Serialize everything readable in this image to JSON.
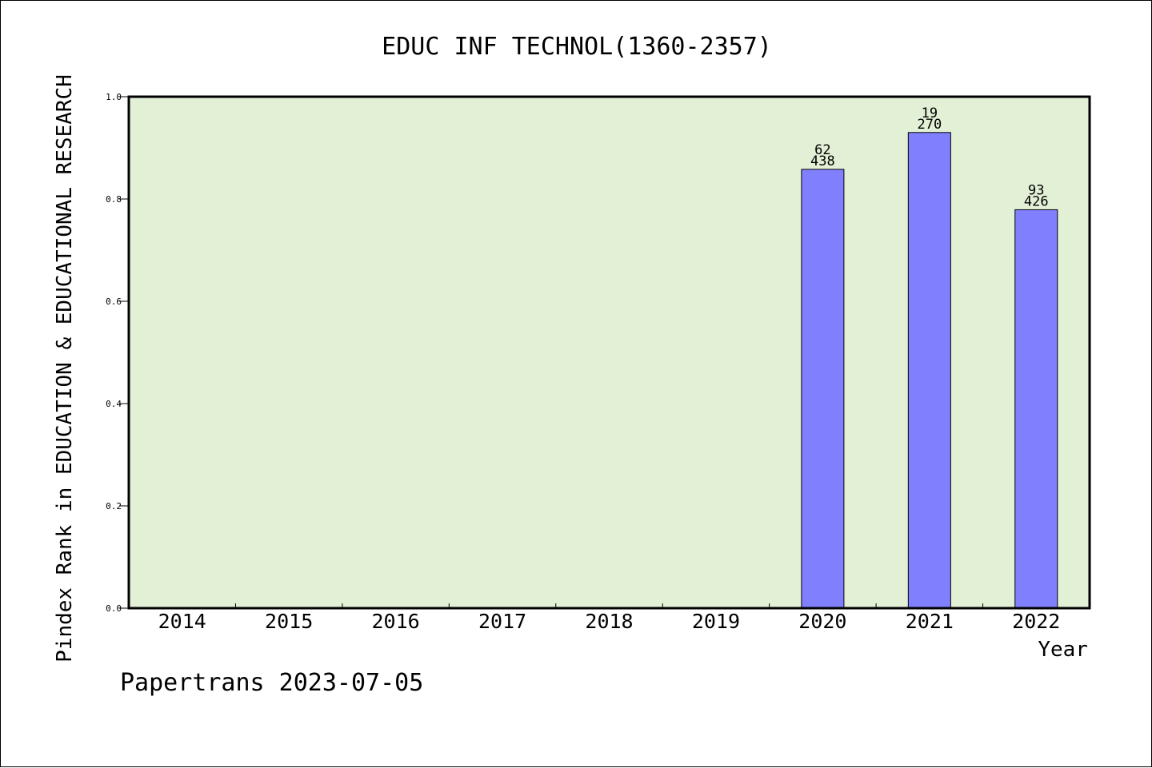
{
  "chart_data": {
    "type": "bar",
    "title": "EDUC INF TECHNOL(1360-2357)",
    "xlabel": "Year",
    "ylabel": "Pindex Rank in EDUCATION & EDUCATIONAL RESEARCH",
    "categories": [
      "2014",
      "2015",
      "2016",
      "2017",
      "2018",
      "2019",
      "2020",
      "2021",
      "2022"
    ],
    "values": [
      null,
      null,
      null,
      null,
      null,
      null,
      0.858,
      0.93,
      0.779
    ],
    "labels_top": [
      null,
      null,
      null,
      null,
      null,
      null,
      "62",
      "19",
      "93"
    ],
    "labels_bottom": [
      null,
      null,
      null,
      null,
      null,
      null,
      "438",
      "270",
      "426"
    ],
    "ylim": [
      0,
      1.0
    ],
    "yticks": [
      "0.0",
      "0.2",
      "0.4",
      "0.6",
      "0.8",
      "1.0"
    ],
    "grid": false,
    "colors": {
      "plot_background": "#e2f0d6",
      "bar_fill": "#8080ff",
      "bar_stroke": "#000000"
    }
  },
  "footer": {
    "credit": "Papertrans 2023-07-05"
  }
}
